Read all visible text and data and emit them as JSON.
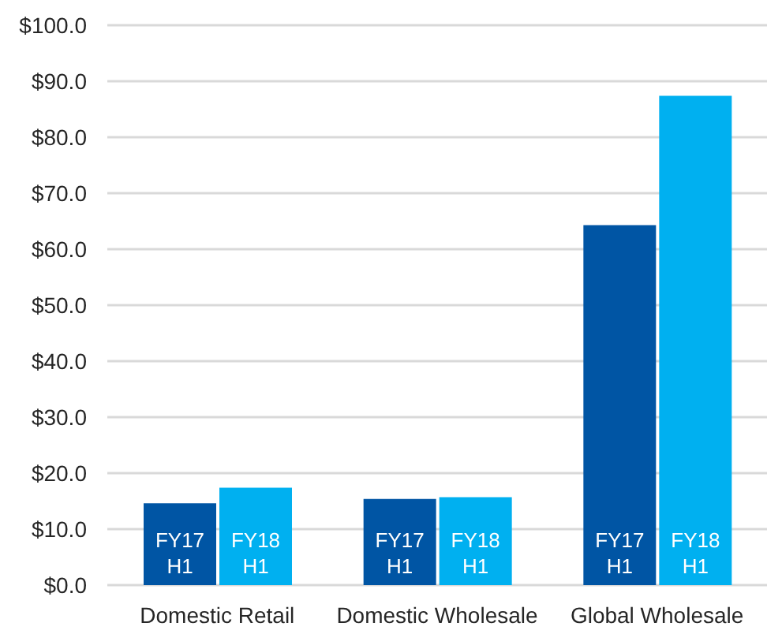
{
  "chart_data": {
    "type": "bar",
    "categories": [
      "Domestic Retail",
      "Domestic Wholesale",
      "Global Wholesale"
    ],
    "series": [
      {
        "name": "FY17 H1",
        "color": "#0055a4",
        "values": [
          14.6,
          15.4,
          64.3
        ]
      },
      {
        "name": "FY18 H1",
        "color": "#00b0f0",
        "values": [
          17.4,
          15.7,
          87.4
        ]
      }
    ],
    "ylim": [
      0,
      100
    ],
    "yticks": [
      {
        "value": 0,
        "label": "$0.0"
      },
      {
        "value": 10,
        "label": "$10.0"
      },
      {
        "value": 20,
        "label": "$20.0"
      },
      {
        "value": 30,
        "label": "$30.0"
      },
      {
        "value": 40,
        "label": "$40.0"
      },
      {
        "value": 50,
        "label": "$50.0"
      },
      {
        "value": 60,
        "label": "$60.0"
      },
      {
        "value": 70,
        "label": "$70.0"
      },
      {
        "value": 80,
        "label": "$80.0"
      },
      {
        "value": 90,
        "label": "$90.0"
      },
      {
        "value": 100,
        "label": "$100.0"
      }
    ],
    "grid": "y"
  }
}
